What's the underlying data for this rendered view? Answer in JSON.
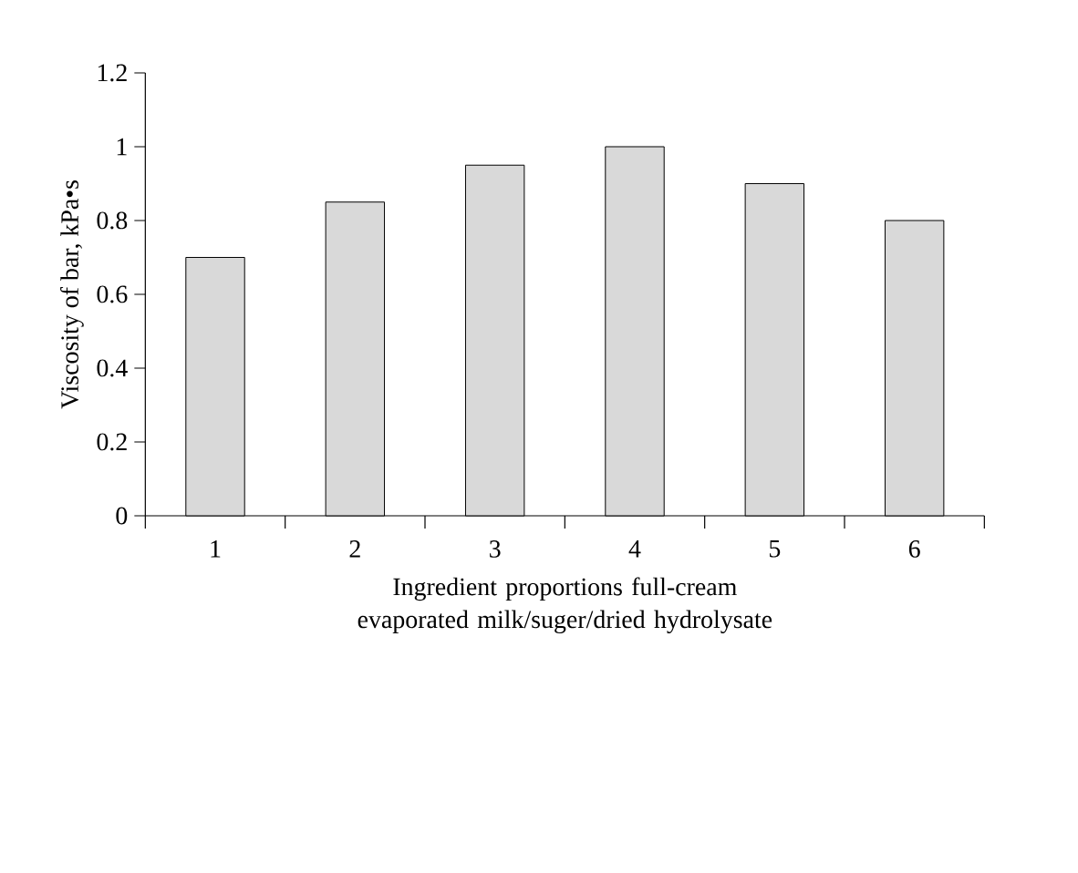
{
  "chart_data": {
    "type": "bar",
    "xlabel": "Ingredient proportions full-cream evaporated milk/suger/dried hydrolysate",
    "ylabel": "Viscosity of bar,  kPa•s",
    "categories": [
      "1",
      "2",
      "3",
      "4",
      "5",
      "6"
    ],
    "values": [
      0.7,
      0.85,
      0.95,
      1.0,
      0.9,
      0.8
    ],
    "color": "#d9d9d9",
    "ylim": [
      0,
      1.2
    ],
    "yticks": [
      0,
      0.2,
      0.4,
      0.6,
      0.8,
      1,
      1.2
    ]
  }
}
